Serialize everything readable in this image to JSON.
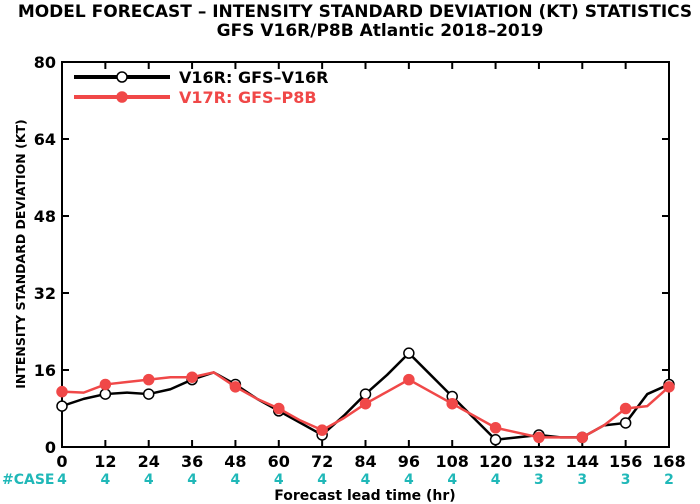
{
  "chart_data": {
    "type": "line",
    "title": "MODEL FORECAST – INTENSITY STANDARD DEVIATION (KT) STATISTICS",
    "subtitle": "GFS V16R/P8B Atlantic 2018–2019",
    "ylabel": "INTENSITY STANDARD DEVIATION (KT)",
    "xlabel": "Forecast lead time (hr)",
    "ylim": [
      0,
      80
    ],
    "yticks": [
      "0",
      "16",
      "32",
      "48",
      "64",
      "80"
    ],
    "xlim": [
      0,
      168
    ],
    "x": [
      0,
      12,
      24,
      36,
      48,
      60,
      72,
      84,
      96,
      108,
      120,
      132,
      144,
      156,
      168
    ],
    "xtick_labels": [
      "0",
      "12",
      "24",
      "36",
      "48",
      "60",
      "72",
      "84",
      "96",
      "108",
      "120",
      "132",
      "144",
      "156",
      "168"
    ],
    "case_label": "#CASE",
    "case_counts": [
      "4",
      "4",
      "4",
      "4",
      "4",
      "4",
      "4",
      "4",
      "4",
      "4",
      "4",
      "3",
      "3",
      "3",
      "2"
    ],
    "series": [
      {
        "name": "V16R: GFS–V16R",
        "color": "#000000",
        "x": [
          0,
          6,
          12,
          18,
          24,
          30,
          36,
          42,
          48,
          54,
          60,
          66,
          72,
          78,
          84,
          90,
          96,
          102,
          108,
          114,
          120,
          126,
          132,
          138,
          144,
          150,
          156,
          162,
          168
        ],
        "y": [
          8.5,
          10,
          11,
          11.3,
          11,
          12,
          14,
          15.5,
          13,
          10,
          7.5,
          5,
          2.5,
          6.5,
          11,
          15,
          19.5,
          15,
          10.5,
          6,
          1.5,
          2,
          2.5,
          2,
          2,
          4.5,
          5,
          11,
          13
        ],
        "marker_x": [
          0,
          12,
          24,
          36,
          48,
          60,
          72,
          84,
          96,
          108,
          120,
          132,
          144,
          156,
          168
        ],
        "marker_y": [
          8.5,
          11,
          11,
          14,
          13,
          7.5,
          2.5,
          11,
          19.5,
          10.5,
          1.5,
          2.5,
          2,
          5,
          13
        ]
      },
      {
        "name": "V17R: GFS–P8B",
        "color": "#f04848",
        "x": [
          0,
          6,
          12,
          18,
          24,
          30,
          36,
          42,
          48,
          54,
          60,
          66,
          72,
          78,
          84,
          90,
          96,
          102,
          108,
          114,
          120,
          126,
          132,
          138,
          144,
          150,
          156,
          162,
          168
        ],
        "y": [
          11.5,
          11.3,
          13,
          13.5,
          14,
          14.5,
          14.5,
          15.5,
          12.5,
          10,
          8,
          5.5,
          3.5,
          6,
          9,
          11.5,
          14,
          11.5,
          9,
          6.5,
          4,
          3,
          2,
          2,
          2,
          4.5,
          8,
          8.5,
          12.5
        ],
        "marker_x": [
          0,
          12,
          24,
          36,
          48,
          60,
          72,
          84,
          96,
          108,
          120,
          132,
          144,
          156,
          168
        ],
        "marker_y": [
          11.5,
          13,
          14,
          14.5,
          12.5,
          8,
          3.5,
          9,
          14,
          9,
          4,
          2,
          2,
          8,
          12.5
        ]
      }
    ],
    "grid": false,
    "legend_position": "top-left",
    "case_color": "#20b8b8"
  }
}
